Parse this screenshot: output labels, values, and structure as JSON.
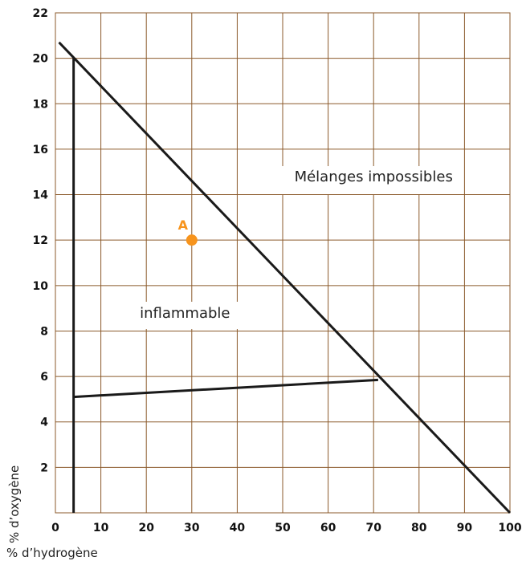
{
  "chart_data": {
    "type": "line",
    "xlabel": "% d’hydrogène",
    "ylabel": "% d’oxygène",
    "xlim": [
      0,
      100
    ],
    "ylim": [
      0,
      22
    ],
    "x_ticks": [
      0,
      10,
      20,
      30,
      40,
      50,
      60,
      70,
      80,
      90,
      100
    ],
    "y_ticks": [
      2,
      4,
      6,
      8,
      10,
      12,
      14,
      16,
      18,
      20,
      22
    ],
    "grid": true,
    "series": [
      {
        "points": [
          [
            0.8,
            20.7
          ],
          [
            100,
            0
          ]
        ]
      },
      {
        "points": [
          [
            4,
            20
          ],
          [
            4,
            0
          ]
        ]
      },
      {
        "points": [
          [
            4,
            5.1
          ],
          [
            71,
            5.85
          ]
        ]
      }
    ],
    "annotations": [
      {
        "text": "Mélanges impossibles",
        "x": 70,
        "y": 14.8
      },
      {
        "text": "inflammable",
        "x": 28.5,
        "y": 8.8
      }
    ],
    "highlight_point": {
      "label": "A",
      "x": 30,
      "y": 12,
      "color": "#f7941d"
    },
    "colors": {
      "grid": "#8b5a2b",
      "line": "#1a1a1a",
      "text": "#111111"
    }
  }
}
